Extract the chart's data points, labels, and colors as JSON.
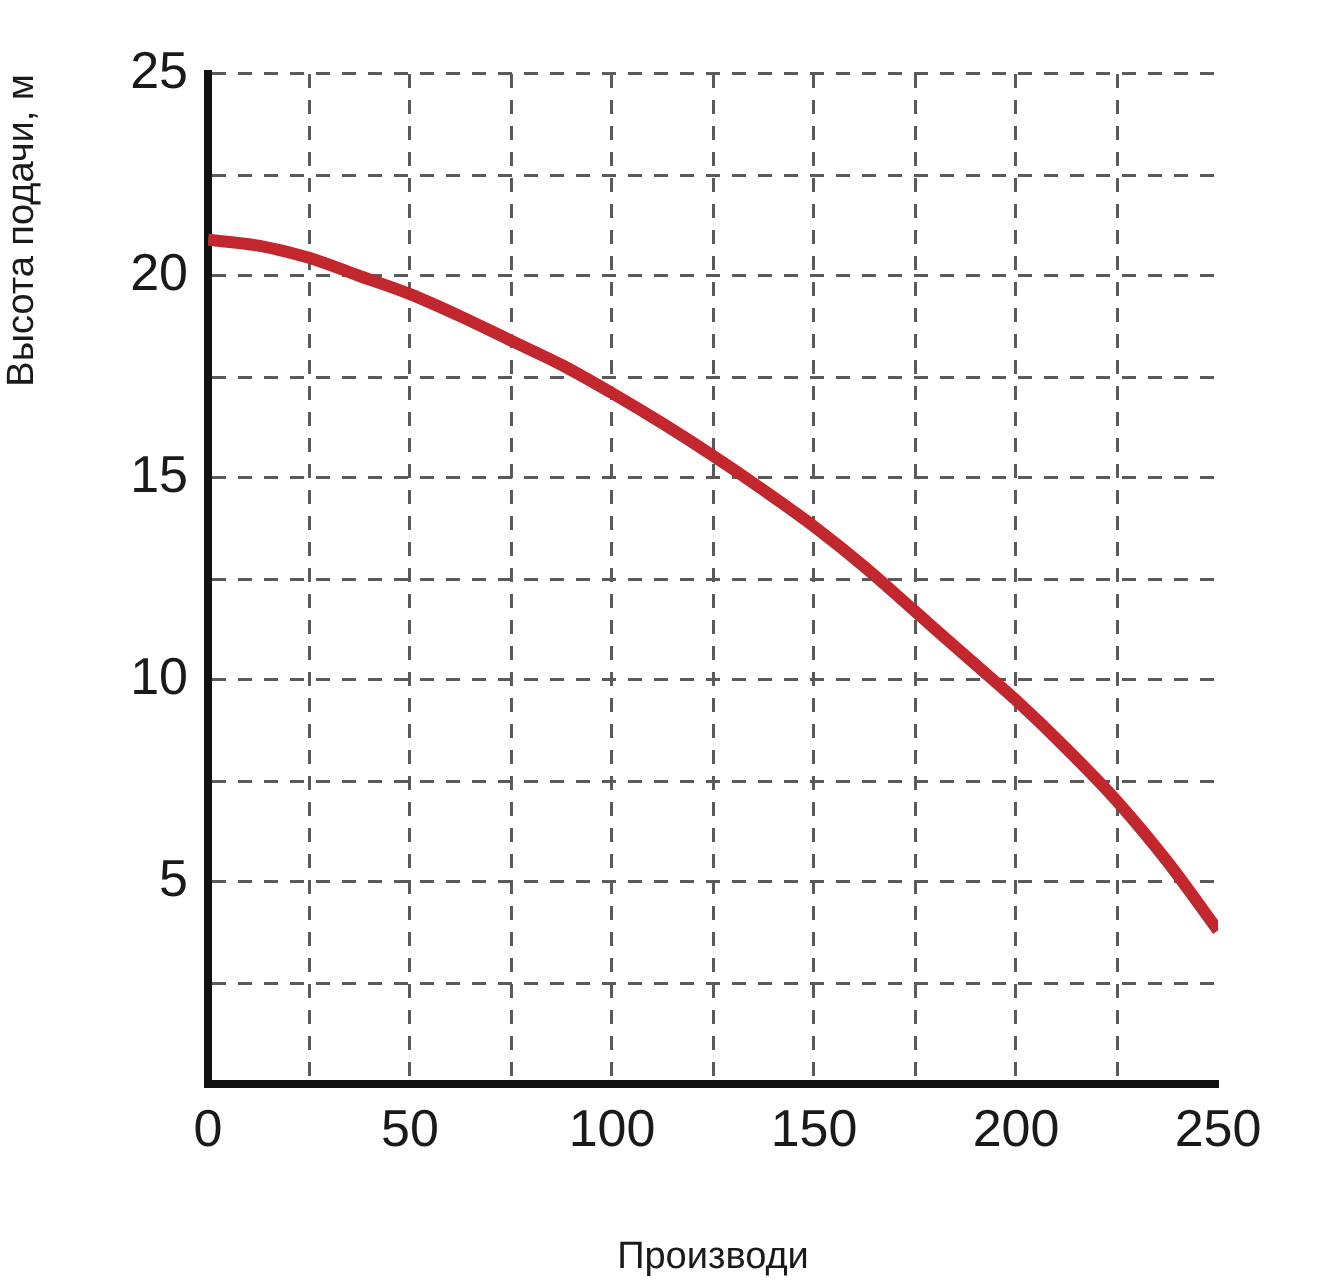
{
  "chart_data": {
    "type": "line",
    "xlabel": "Производи",
    "ylabel": "Высота подачи, м",
    "x": [
      0,
      12.5,
      25,
      37.5,
      50,
      62.5,
      75,
      87.5,
      100,
      112.5,
      125,
      137.5,
      150,
      162.5,
      175,
      187.5,
      200,
      212.5,
      225,
      237.5,
      250
    ],
    "series": [
      {
        "color": "#c1272d",
        "values": [
          20.9,
          20.75,
          20.45,
          20.0,
          19.55,
          19.0,
          18.4,
          17.8,
          17.1,
          16.35,
          15.55,
          14.7,
          13.8,
          12.8,
          11.7,
          10.6,
          9.5,
          8.3,
          7.0,
          5.5,
          3.8
        ]
      }
    ],
    "xlim": [
      0,
      250
    ],
    "ylim": [
      0,
      25
    ],
    "xticks": [
      0,
      {
        "value": 25,
        "label": null
      },
      50,
      {
        "value": 75,
        "label": null
      },
      100,
      {
        "value": 125,
        "label": null
      },
      150,
      {
        "value": 175,
        "label": null
      },
      200,
      {
        "value": 225,
        "label": null
      },
      250
    ],
    "yticks": [
      {
        "value": 2.5,
        "label": null
      },
      5,
      {
        "value": 7.5,
        "label": null
      },
      10,
      {
        "value": 12.5,
        "label": null
      },
      15,
      {
        "value": 17.5,
        "label": null
      },
      20,
      {
        "value": 22.5,
        "label": null
      },
      25
    ],
    "grid": true,
    "marker": "none",
    "line_style": "solid"
  }
}
